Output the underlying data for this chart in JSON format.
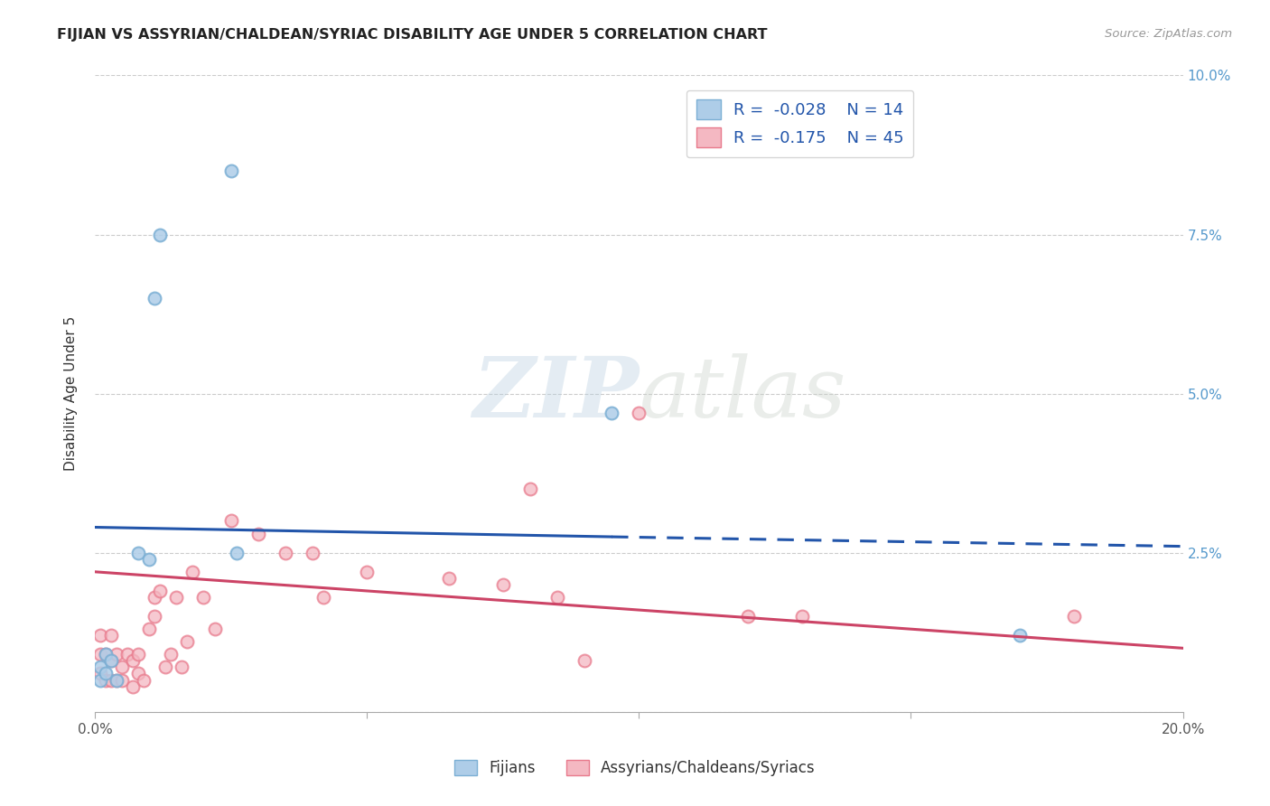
{
  "title": "FIJIAN VS ASSYRIAN/CHALDEAN/SYRIAC DISABILITY AGE UNDER 5 CORRELATION CHART",
  "source": "Source: ZipAtlas.com",
  "ylabel": "Disability Age Under 5",
  "xlim": [
    0.0,
    0.2
  ],
  "ylim": [
    0.0,
    0.1
  ],
  "xticks": [
    0.0,
    0.05,
    0.1,
    0.15,
    0.2
  ],
  "yticks": [
    0.0,
    0.025,
    0.05,
    0.075,
    0.1
  ],
  "xticklabels": [
    "0.0%",
    "",
    "",
    "",
    "20.0%"
  ],
  "yticklabels_right": [
    "",
    "2.5%",
    "5.0%",
    "7.5%",
    "10.0%"
  ],
  "fijian_color": "#7bafd4",
  "fijian_color_fill": "#aecde8",
  "assyrian_color": "#e87a8c",
  "assyrian_color_fill": "#f4b8c2",
  "line_fijian_color": "#2255aa",
  "line_assyrian_color": "#cc4466",
  "R_fijian": -0.028,
  "N_fijian": 14,
  "R_assyrian": -0.175,
  "N_assyrian": 45,
  "fijian_x": [
    0.001,
    0.001,
    0.002,
    0.002,
    0.003,
    0.004,
    0.008,
    0.01,
    0.011,
    0.012,
    0.025,
    0.026,
    0.095,
    0.17
  ],
  "fijian_y": [
    0.005,
    0.007,
    0.006,
    0.009,
    0.008,
    0.005,
    0.025,
    0.024,
    0.065,
    0.075,
    0.085,
    0.025,
    0.047,
    0.012
  ],
  "assyrian_x": [
    0.001,
    0.001,
    0.001,
    0.002,
    0.002,
    0.003,
    0.003,
    0.003,
    0.004,
    0.004,
    0.005,
    0.005,
    0.006,
    0.007,
    0.007,
    0.008,
    0.008,
    0.009,
    0.01,
    0.011,
    0.011,
    0.012,
    0.013,
    0.014,
    0.015,
    0.016,
    0.017,
    0.018,
    0.02,
    0.022,
    0.025,
    0.03,
    0.035,
    0.04,
    0.042,
    0.05,
    0.065,
    0.075,
    0.08,
    0.085,
    0.09,
    0.1,
    0.12,
    0.13,
    0.18
  ],
  "assyrian_y": [
    0.006,
    0.009,
    0.012,
    0.005,
    0.009,
    0.005,
    0.008,
    0.012,
    0.005,
    0.009,
    0.005,
    0.007,
    0.009,
    0.004,
    0.008,
    0.006,
    0.009,
    0.005,
    0.013,
    0.015,
    0.018,
    0.019,
    0.007,
    0.009,
    0.018,
    0.007,
    0.011,
    0.022,
    0.018,
    0.013,
    0.03,
    0.028,
    0.025,
    0.025,
    0.018,
    0.022,
    0.021,
    0.02,
    0.035,
    0.018,
    0.008,
    0.047,
    0.015,
    0.015,
    0.015
  ],
  "fijian_line_x0": 0.0,
  "fijian_line_y0": 0.029,
  "fijian_line_x1": 0.095,
  "fijian_line_y1": 0.0275,
  "fijian_line_dash_x0": 0.095,
  "fijian_line_dash_y0": 0.0275,
  "fijian_line_dash_x1": 0.2,
  "fijian_line_dash_y1": 0.026,
  "assyrian_line_x0": 0.0,
  "assyrian_line_y0": 0.022,
  "assyrian_line_x1": 0.2,
  "assyrian_line_y1": 0.01,
  "watermark_zip": "ZIP",
  "watermark_atlas": "atlas",
  "background_color": "#ffffff",
  "grid_color": "#cccccc",
  "marker_size": 100
}
